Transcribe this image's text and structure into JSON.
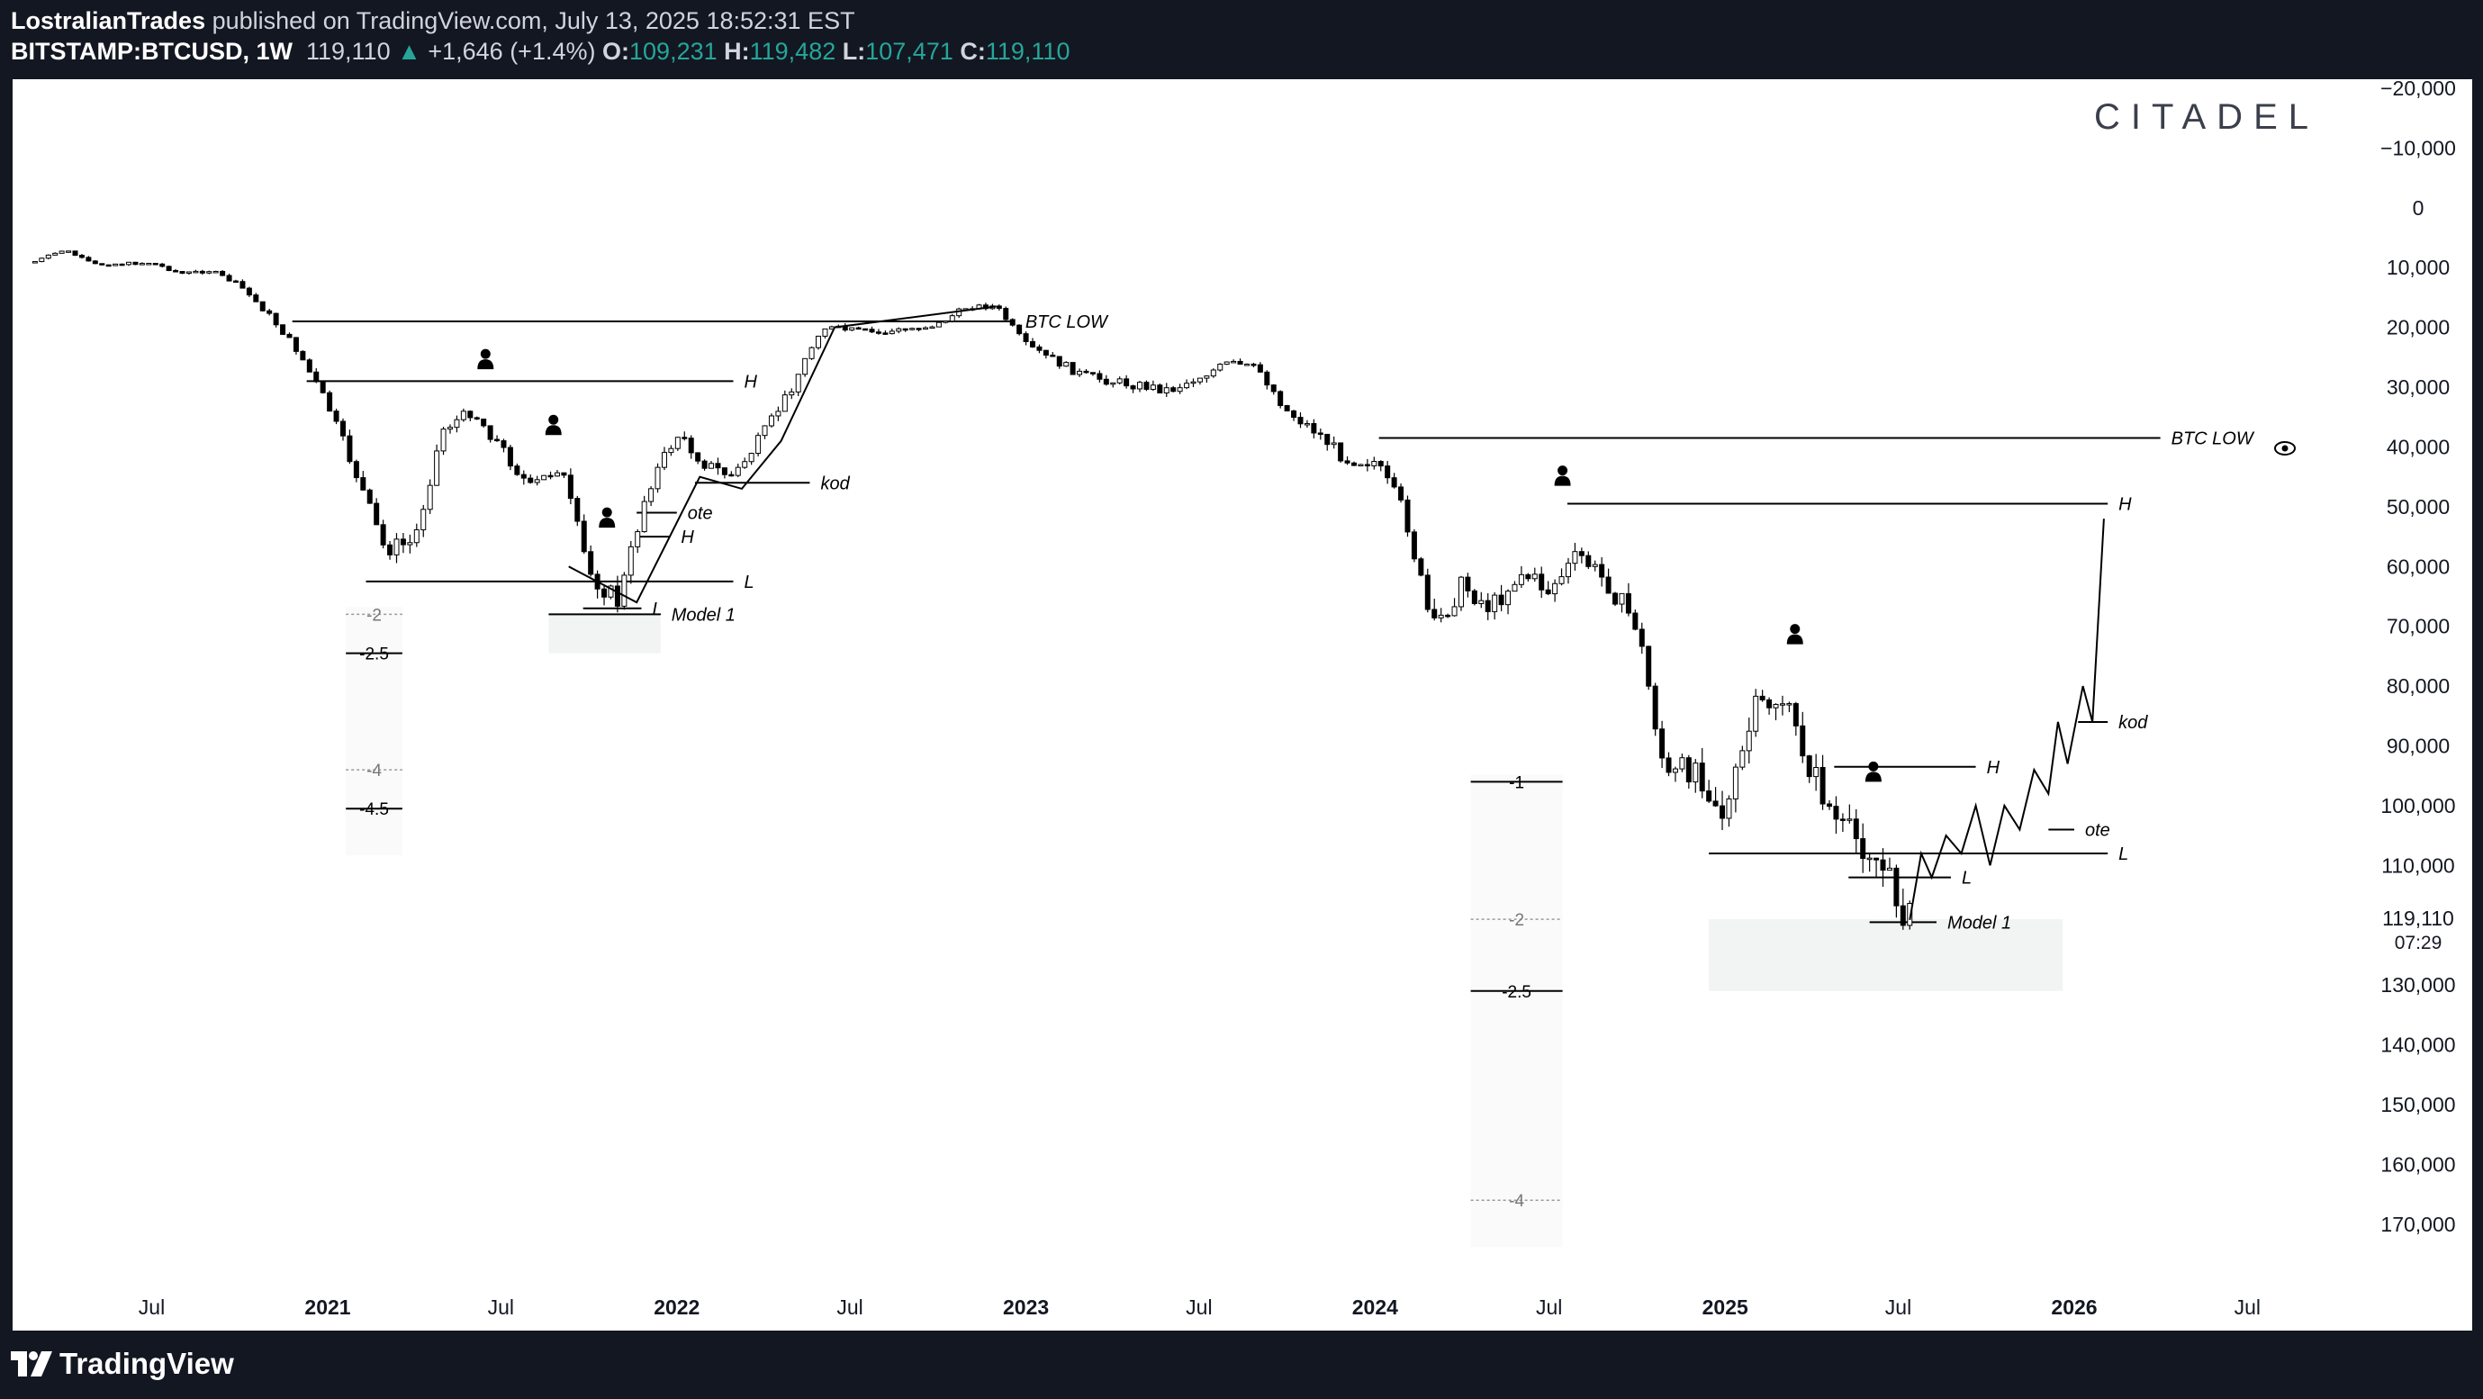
{
  "header": {
    "author": "LostralianTrades",
    "published": " published on TradingView.com, July 13, 2025 18:52:31 EST",
    "symbol": "BITSTAMP:BTCUSD, 1W",
    "last": "119,110",
    "change": "+1,646 (+1.4%)",
    "o_label": "O:",
    "o": "109,231",
    "h_label": "H:",
    "h": "119,482",
    "l_label": "L:",
    "l": "107,471",
    "c_label": "C:",
    "c": "119,110"
  },
  "watermark": "CITADEL",
  "footer": {
    "brand": "TradingView"
  },
  "colors": {
    "background": "#131722",
    "up": "#26a69a",
    "zone": "#f2f3f3",
    "ink": "#000000"
  },
  "chart_data": {
    "type": "line",
    "y_axis_inverted": true,
    "ylim": [
      -20000,
      175000
    ],
    "y_ticks": [
      -20000,
      -10000,
      0,
      10000,
      20000,
      30000,
      40000,
      50000,
      60000,
      70000,
      80000,
      90000,
      100000,
      110000,
      130000,
      140000,
      150000,
      160000,
      170000
    ],
    "y_tick_labels": [
      "−20,000",
      "−10,000",
      "0",
      "10,000",
      "20,000",
      "30,000",
      "40,000",
      "50,000",
      "60,000",
      "70,000",
      "80,000",
      "90,000",
      "100,000",
      "110,000",
      "130,000",
      "140,000",
      "150,000",
      "160,000",
      "170,000"
    ],
    "last_price": {
      "value": 119110,
      "label": "119,110",
      "countdown": "07:29"
    },
    "x_ticks": [
      {
        "x": "2020-07-01",
        "label": "Jul",
        "bold": false
      },
      {
        "x": "2021-01-01",
        "label": "2021",
        "bold": true
      },
      {
        "x": "2021-07-01",
        "label": "Jul",
        "bold": false
      },
      {
        "x": "2022-01-01",
        "label": "2022",
        "bold": true
      },
      {
        "x": "2022-07-01",
        "label": "Jul",
        "bold": false
      },
      {
        "x": "2023-01-01",
        "label": "2023",
        "bold": true
      },
      {
        "x": "2023-07-01",
        "label": "Jul",
        "bold": false
      },
      {
        "x": "2024-01-01",
        "label": "2024",
        "bold": true
      },
      {
        "x": "2024-07-01",
        "label": "Jul",
        "bold": false
      },
      {
        "x": "2025-01-01",
        "label": "2025",
        "bold": true
      },
      {
        "x": "2025-07-01",
        "label": "Jul",
        "bold": false
      },
      {
        "x": "2026-01-01",
        "label": "2026",
        "bold": true
      },
      {
        "x": "2026-07-01",
        "label": "Jul",
        "bold": false
      }
    ],
    "series": [
      {
        "points": [
          [
            "2020-03-01",
            9000
          ],
          [
            "2020-04-01",
            7000
          ],
          [
            "2020-05-01",
            9500
          ],
          [
            "2020-07-01",
            9200
          ],
          [
            "2020-08-01",
            11000
          ],
          [
            "2020-09-01",
            10500
          ],
          [
            "2020-10-01",
            13000
          ],
          [
            "2020-11-01",
            18000
          ],
          [
            "2020-12-01",
            24000
          ],
          [
            "2021-01-01",
            33000
          ],
          [
            "2021-02-01",
            45000
          ],
          [
            "2021-03-01",
            57000
          ],
          [
            "2021-04-01",
            56000
          ],
          [
            "2021-05-01",
            37000
          ],
          [
            "2021-06-01",
            34000
          ],
          [
            "2021-07-01",
            40000
          ],
          [
            "2021-08-01",
            47000
          ],
          [
            "2021-09-01",
            43000
          ],
          [
            "2021-10-01",
            61000
          ],
          [
            "2021-11-01",
            66000
          ],
          [
            "2021-12-01",
            47000
          ],
          [
            "2022-01-01",
            38000
          ],
          [
            "2022-02-01",
            43000
          ],
          [
            "2022-03-01",
            45000
          ],
          [
            "2022-04-01",
            38000
          ],
          [
            "2022-05-01",
            30000
          ],
          [
            "2022-06-01",
            20000
          ],
          [
            "2022-08-01",
            21000
          ],
          [
            "2022-10-01",
            19500
          ],
          [
            "2022-11-01",
            16500
          ],
          [
            "2022-12-01",
            16500
          ],
          [
            "2023-01-01",
            23000
          ],
          [
            "2023-03-01",
            28000
          ],
          [
            "2023-04-01",
            29000
          ],
          [
            "2023-06-01",
            30500
          ],
          [
            "2023-08-01",
            26000
          ],
          [
            "2023-09-01",
            27000
          ],
          [
            "2023-10-01",
            34000
          ],
          [
            "2023-11-01",
            37500
          ],
          [
            "2023-12-01",
            42000
          ],
          [
            "2024-01-01",
            42500
          ],
          [
            "2024-02-01",
            51000
          ],
          [
            "2024-03-01",
            71000
          ],
          [
            "2024-04-01",
            63000
          ],
          [
            "2024-05-01",
            67000
          ],
          [
            "2024-06-01",
            61000
          ],
          [
            "2024-07-01",
            64000
          ],
          [
            "2024-08-01",
            58000
          ],
          [
            "2024-09-01",
            63000
          ],
          [
            "2024-10-01",
            70000
          ],
          [
            "2024-11-01",
            96000
          ],
          [
            "2024-12-01",
            93000
          ],
          [
            "2025-01-01",
            102000
          ],
          [
            "2025-02-01",
            84000
          ],
          [
            "2025-03-01",
            82000
          ],
          [
            "2025-04-01",
            94000
          ],
          [
            "2025-05-01",
            104000
          ],
          [
            "2025-06-01",
            107000
          ],
          [
            "2025-07-13",
            119110
          ]
        ]
      }
    ],
    "projections": [
      {
        "name": "projection-2021",
        "points": [
          [
            "2021-09-10",
            60000
          ],
          [
            "2021-11-20",
            66000
          ],
          [
            "2022-01-25",
            45000
          ],
          [
            "2022-03-10",
            47000
          ],
          [
            "2022-04-20",
            39000
          ],
          [
            "2022-06-15",
            20000
          ],
          [
            "2022-12-01",
            16500
          ]
        ]
      },
      {
        "name": "projection-2025",
        "points": [
          [
            "2025-07-13",
            119110
          ],
          [
            "2025-07-25",
            108000
          ],
          [
            "2025-08-05",
            112000
          ],
          [
            "2025-08-20",
            105000
          ],
          [
            "2025-09-05",
            108000
          ],
          [
            "2025-09-20",
            100000
          ],
          [
            "2025-10-05",
            110000
          ],
          [
            "2025-10-20",
            100000
          ],
          [
            "2025-11-05",
            104000
          ],
          [
            "2025-11-20",
            94000
          ],
          [
            "2025-12-05",
            98000
          ],
          [
            "2025-12-15",
            86000
          ],
          [
            "2025-12-25",
            93000
          ],
          [
            "2026-01-10",
            80000
          ],
          [
            "2026-01-20",
            86000
          ],
          [
            "2026-02-01",
            52000
          ]
        ]
      }
    ],
    "levels": [
      {
        "name": "btc-low-2020",
        "y": 19000,
        "x0": "2020-11-25",
        "x1": "2022-12-20",
        "label": "BTC LOW"
      },
      {
        "name": "h-2021",
        "y": 29000,
        "x0": "2020-12-10",
        "x1": "2022-03-01",
        "label": "H"
      },
      {
        "name": "kod-2022",
        "y": 46000,
        "x0": "2022-01-20",
        "x1": "2022-05-20",
        "label": "kod"
      },
      {
        "name": "ote-2021",
        "y": 51000,
        "x0": "2021-11-20",
        "x1": "2022-01-01",
        "label": "ote"
      },
      {
        "name": "h-2021-inner",
        "y": 55000,
        "x0": "2021-11-20",
        "x1": "2021-12-25",
        "label": "H"
      },
      {
        "name": "l-2021",
        "y": 62500,
        "x0": "2021-02-10",
        "x1": "2022-03-01",
        "label": "L"
      },
      {
        "name": "l-2021-small",
        "y": 67000,
        "x0": "2021-09-25",
        "x1": "2021-11-25",
        "label": "L"
      },
      {
        "name": "model-2021",
        "y": 68000,
        "x0": "2021-08-20",
        "x1": "2021-12-15",
        "label": "Model 1"
      },
      {
        "name": "btc-low-2024",
        "y": 38500,
        "x0": "2024-01-05",
        "x1": "2026-04-01",
        "label": "BTC LOW"
      },
      {
        "name": "h-2024",
        "y": 49500,
        "x0": "2024-07-20",
        "x1": "2026-02-05",
        "label": "H"
      },
      {
        "name": "h-2025",
        "y": 93500,
        "x0": "2025-04-25",
        "x1": "2025-09-20",
        "label": "H"
      },
      {
        "name": "ote-2025",
        "y": 104000,
        "x0": "2025-12-05",
        "x1": "2026-01-01",
        "label": "ote"
      },
      {
        "name": "kod-2026",
        "y": 86000,
        "x0": "2026-01-05",
        "x1": "2026-02-05",
        "label": "kod"
      },
      {
        "name": "l-2025",
        "y": 108000,
        "x0": "2024-12-15",
        "x1": "2026-02-05",
        "label": "L"
      },
      {
        "name": "l-2025-small",
        "y": 112000,
        "x0": "2025-05-10",
        "x1": "2025-08-25",
        "label": "L"
      },
      {
        "name": "model-2025",
        "y": 119500,
        "x0": "2025-06-01",
        "x1": "2025-08-10",
        "label": "Model 1"
      }
    ],
    "fib_sets": [
      {
        "name": "fib-2021",
        "x0": "2021-01-20",
        "x1": "2021-03-20",
        "levels": [
          {
            "label": "-2",
            "y": 68000,
            "style": "dotted"
          },
          {
            "label": "-2.5",
            "y": 74500,
            "style": "solid"
          },
          {
            "label": "-4",
            "y": 94000,
            "style": "dotted"
          },
          {
            "label": "-4.5",
            "y": 100500,
            "style": "solid"
          }
        ]
      },
      {
        "name": "fib-2024",
        "x0": "2024-04-10",
        "x1": "2024-07-15",
        "levels": [
          {
            "label": "-1",
            "y": 96000,
            "style": "solid"
          },
          {
            "label": "-2",
            "y": 119000,
            "style": "dotted"
          },
          {
            "label": "-2.5",
            "y": 131000,
            "style": "solid"
          },
          {
            "label": "-4",
            "y": 166000,
            "style": "dotted"
          }
        ]
      }
    ],
    "zones": [
      {
        "name": "zone-2021",
        "x0": "2021-08-20",
        "x1": "2021-12-15",
        "y0": 68000,
        "y1": 74500
      },
      {
        "name": "zone-2025",
        "x0": "2024-12-15",
        "x1": "2025-12-20",
        "y0": 119000,
        "y1": 131000
      }
    ],
    "markers": [
      {
        "name": "person-marker-1",
        "x": "2021-06-15",
        "y": 25500
      },
      {
        "name": "person-marker-2",
        "x": "2021-08-25",
        "y": 36500
      },
      {
        "name": "person-marker-3",
        "x": "2021-10-20",
        "y": 52000
      },
      {
        "name": "person-marker-4",
        "x": "2024-07-15",
        "y": 45000
      },
      {
        "name": "person-marker-5",
        "x": "2025-03-15",
        "y": 71500
      },
      {
        "name": "person-marker-6",
        "x": "2025-06-05",
        "y": 94500
      }
    ]
  }
}
